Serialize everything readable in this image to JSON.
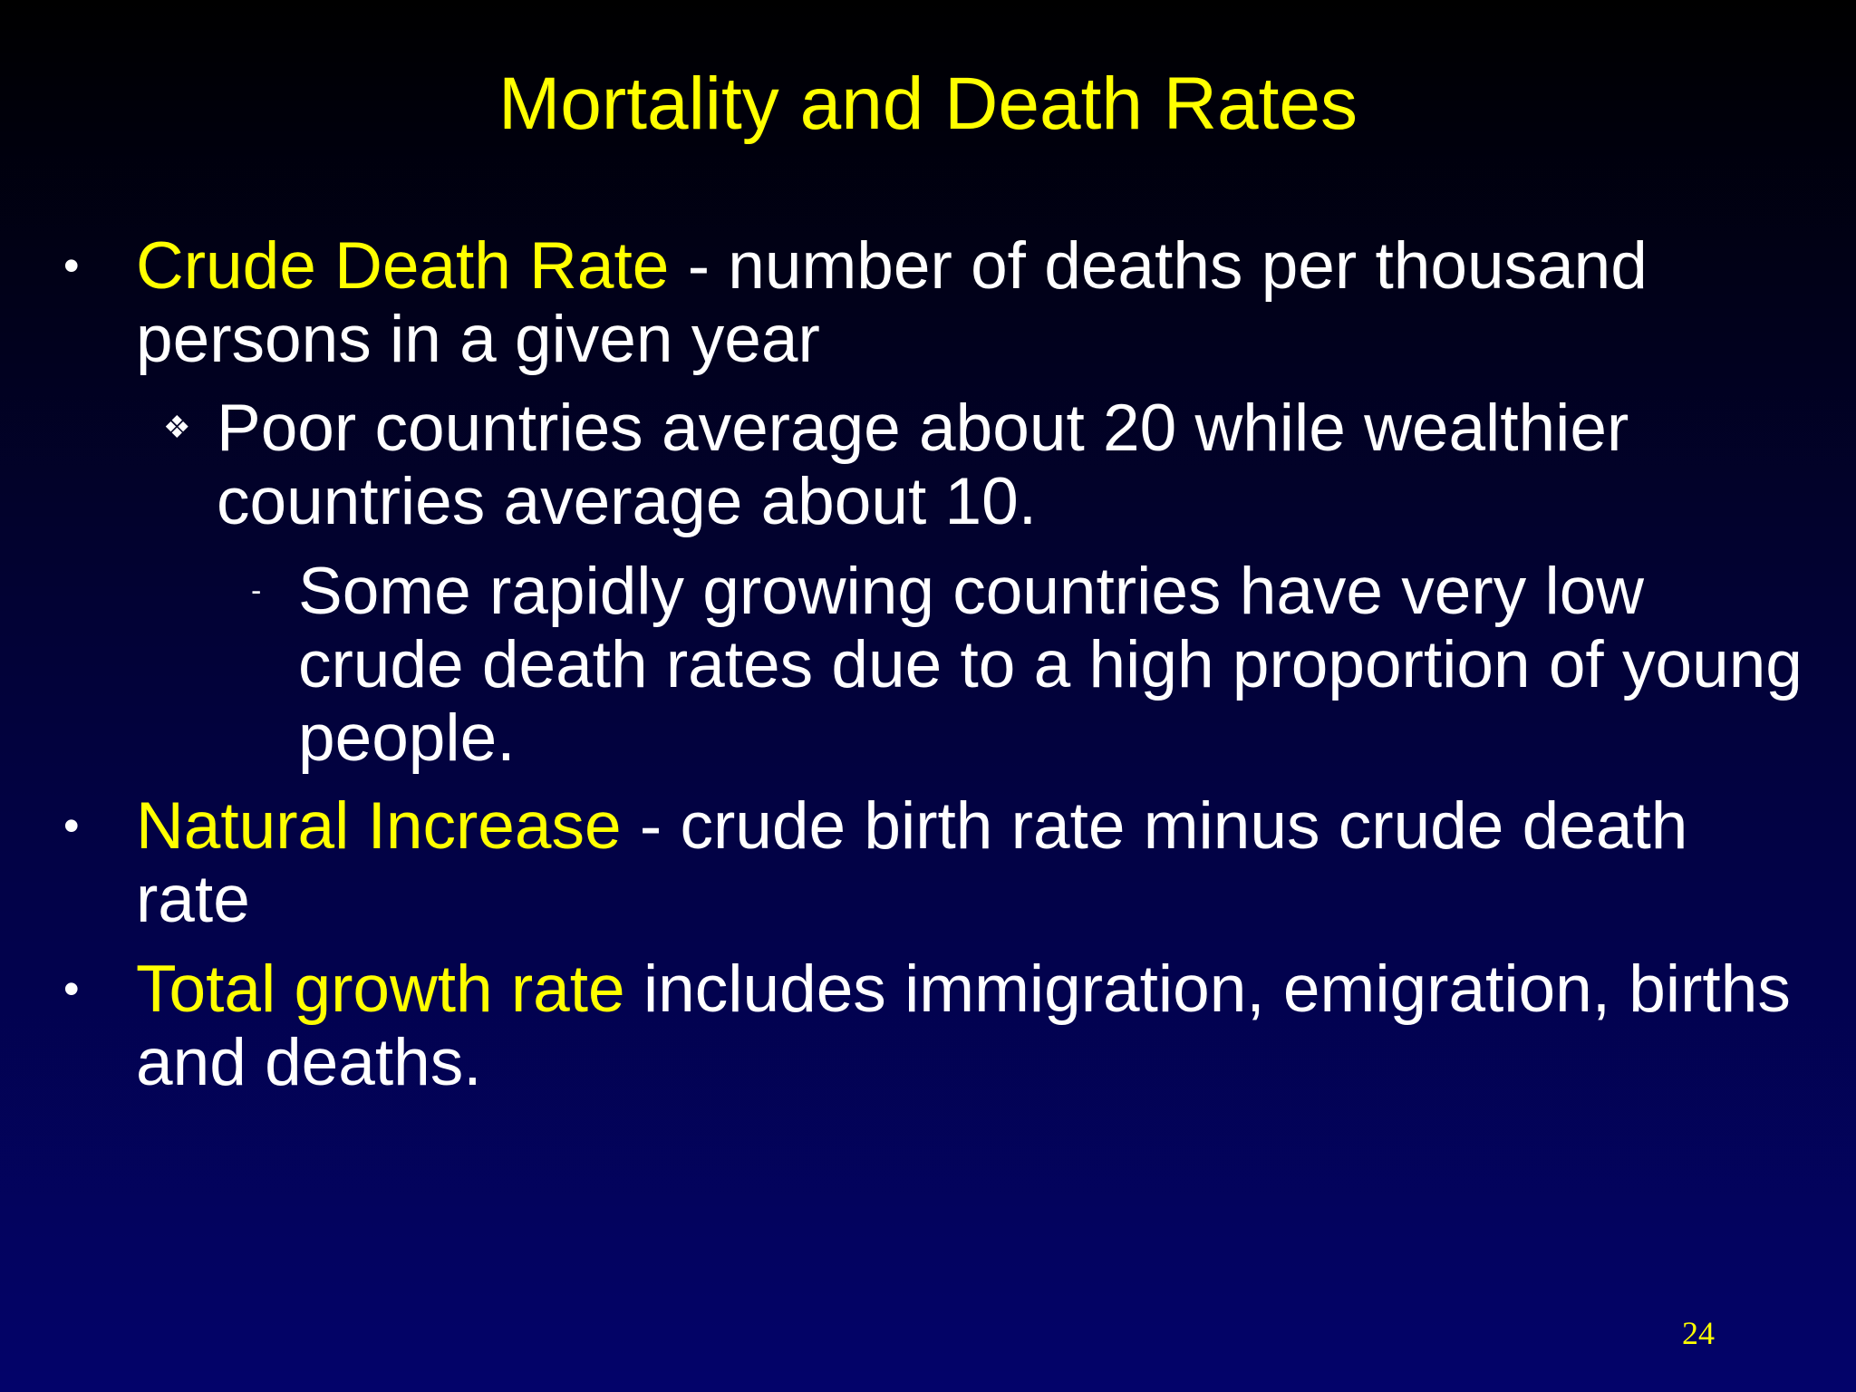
{
  "title": "Mortality and Death Rates",
  "bullets": [
    {
      "term": "Crude Death Rate",
      "text": "- number of deaths per thousand persons in a given year",
      "sub": {
        "text": "Poor countries average about 20 while wealthier countries average about 10.",
        "sub": {
          "text": "Some rapidly growing countries have very low crude death rates due to a high proportion of young people."
        }
      }
    },
    {
      "term": "Natural Increase",
      "text": "- crude birth rate minus crude death rate"
    },
    {
      "term": "Total growth rate",
      "text": "includes immigration, emigration, births and deaths."
    }
  ],
  "page_number": "24"
}
